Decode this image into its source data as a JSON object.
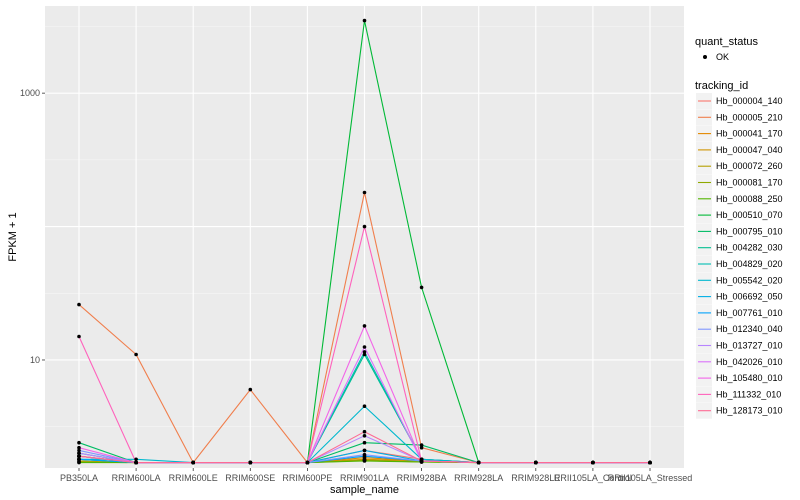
{
  "chart_data": {
    "type": "line",
    "xlabel": "sample_name",
    "ylabel": "FPKM + 1",
    "y_scale": "log10",
    "ylim": [
      1.55,
      4500
    ],
    "y_ticks": [
      {
        "value": 10,
        "label": "10"
      },
      {
        "value": 1000,
        "label": "1000"
      }
    ],
    "grid": true,
    "legend_position": "right",
    "categories": [
      "PB350LA",
      "RRIM600LA",
      "RRIM600LE",
      "RRIM600SE",
      "RRIM600PE",
      "RRIM901LA",
      "RRIM928BA",
      "RRIM928LA",
      "RRIM928LE",
      "RRII105LA_Control",
      "RRII105LA_Stressed"
    ],
    "point_legend": {
      "title": "quant_status",
      "items": [
        {
          "label": "OK"
        }
      ]
    },
    "series_legend_title": "tracking_id",
    "series": [
      {
        "name": "Hb_000004_140",
        "color": "#F8766D",
        "values": [
          1.9,
          1.7,
          1.7,
          1.7,
          1.7,
          2.1,
          1.8,
          1.7,
          1.7,
          1.7,
          1.7
        ]
      },
      {
        "name": "Hb_000005_210",
        "color": "#F07E4C",
        "values": [
          26,
          11,
          1.7,
          6,
          1.7,
          180,
          2.2,
          1.7,
          1.7,
          1.7,
          1.7
        ]
      },
      {
        "name": "Hb_000041_170",
        "color": "#E38900",
        "values": [
          1.9,
          1.7,
          1.7,
          1.7,
          1.7,
          1.85,
          1.75,
          1.7,
          1.7,
          1.7,
          1.7
        ]
      },
      {
        "name": "Hb_000047_040",
        "color": "#D09400",
        "values": [
          1.8,
          1.7,
          1.7,
          1.7,
          1.7,
          1.8,
          1.75,
          1.7,
          1.7,
          1.7,
          1.7
        ]
      },
      {
        "name": "Hb_000072_260",
        "color": "#B59F00",
        "values": [
          1.75,
          1.7,
          1.7,
          1.7,
          1.7,
          1.78,
          1.72,
          1.7,
          1.7,
          1.7,
          1.7
        ]
      },
      {
        "name": "Hb_000081_170",
        "color": "#8FA900",
        "values": [
          1.72,
          1.7,
          1.7,
          1.7,
          1.7,
          1.76,
          1.72,
          1.7,
          1.7,
          1.7,
          1.7
        ]
      },
      {
        "name": "Hb_000088_250",
        "color": "#53B400",
        "values": [
          1.7,
          1.7,
          1.7,
          1.7,
          1.7,
          1.75,
          1.72,
          1.7,
          1.7,
          1.7,
          1.7
        ]
      },
      {
        "name": "Hb_000510_070",
        "color": "#00B936",
        "values": [
          1.8,
          1.7,
          1.7,
          1.7,
          1.7,
          3500,
          35,
          1.7,
          1.7,
          1.7,
          1.7
        ]
      },
      {
        "name": "Hb_000795_010",
        "color": "#00BC64",
        "values": [
          2.4,
          1.7,
          1.7,
          1.7,
          1.7,
          2.4,
          2.3,
          1.7,
          1.7,
          1.7,
          1.7
        ]
      },
      {
        "name": "Hb_004282_030",
        "color": "#00BF90",
        "values": [
          2.0,
          1.7,
          1.7,
          1.7,
          1.7,
          11,
          1.8,
          1.7,
          1.7,
          1.7,
          1.7
        ]
      },
      {
        "name": "Hb_004829_020",
        "color": "#00BDB2",
        "values": [
          1.9,
          1.7,
          1.7,
          1.7,
          1.7,
          11.5,
          1.8,
          1.7,
          1.7,
          1.7,
          1.7
        ]
      },
      {
        "name": "Hb_005542_020",
        "color": "#00B8CE",
        "values": [
          1.8,
          1.8,
          1.7,
          1.7,
          1.7,
          4.5,
          1.8,
          1.7,
          1.7,
          1.7,
          1.7
        ]
      },
      {
        "name": "Hb_006692_050",
        "color": "#00AFE6",
        "values": [
          1.8,
          1.7,
          1.7,
          1.7,
          1.7,
          2.1,
          1.75,
          1.7,
          1.7,
          1.7,
          1.7
        ]
      },
      {
        "name": "Hb_007761_010",
        "color": "#00A2FA",
        "values": [
          1.8,
          1.7,
          1.7,
          1.7,
          1.7,
          1.9,
          1.75,
          1.7,
          1.7,
          1.7,
          1.7
        ]
      },
      {
        "name": "Hb_012340_040",
        "color": "#7F96FF",
        "values": [
          2.1,
          1.7,
          1.7,
          1.7,
          1.7,
          1.95,
          1.75,
          1.7,
          1.7,
          1.7,
          1.7
        ]
      },
      {
        "name": "Hb_013727_010",
        "color": "#B785FF",
        "values": [
          2.0,
          1.7,
          1.7,
          1.7,
          1.7,
          2.7,
          1.75,
          1.7,
          1.7,
          1.7,
          1.7
        ]
      },
      {
        "name": "Hb_042026_010",
        "color": "#DB72FB",
        "values": [
          1.9,
          1.7,
          1.7,
          1.7,
          1.7,
          12.5,
          1.75,
          1.7,
          1.7,
          1.7,
          1.7
        ]
      },
      {
        "name": "Hb_105480_010",
        "color": "#F265E8",
        "values": [
          2.2,
          1.7,
          1.7,
          1.7,
          1.7,
          18,
          1.75,
          1.7,
          1.7,
          1.7,
          1.7
        ]
      },
      {
        "name": "Hb_111332_010",
        "color": "#FF62BC",
        "values": [
          15,
          1.7,
          1.7,
          1.7,
          1.7,
          100,
          1.75,
          1.7,
          1.7,
          1.7,
          1.7
        ]
      },
      {
        "name": "Hb_128173_010",
        "color": "#FE6A94",
        "values": [
          1.9,
          1.7,
          1.7,
          1.7,
          1.7,
          2.9,
          1.75,
          1.7,
          1.7,
          1.7,
          1.7
        ]
      }
    ]
  }
}
